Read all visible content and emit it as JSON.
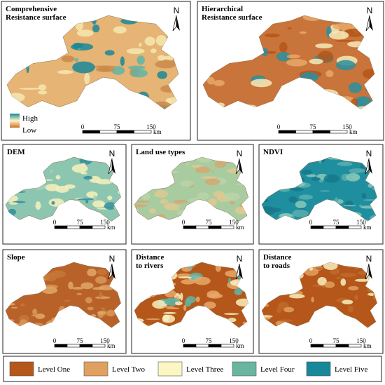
{
  "panels": [
    {
      "title": [
        "Comprehensive",
        "Resistance surface"
      ],
      "north": "N",
      "scale_labels": [
        "0",
        "75",
        "150"
      ],
      "unit": "km",
      "gradient_legend": [
        "High",
        "Low"
      ]
    },
    {
      "title": [
        "Hierarchical",
        "Resistance surface"
      ],
      "north": "N",
      "scale_labels": [
        "0",
        "75",
        "150"
      ],
      "unit": "km"
    },
    {
      "title": [
        "DEM"
      ],
      "north": "N",
      "scale_labels": [
        "0",
        "75",
        "150"
      ],
      "unit": "km"
    },
    {
      "title": [
        "Land use types"
      ],
      "north": "N",
      "scale_labels": [
        "0",
        "75",
        "150"
      ],
      "unit": "km"
    },
    {
      "title": [
        "NDVI"
      ],
      "north": "N",
      "scale_labels": [
        "0",
        "75",
        "150"
      ],
      "unit": "km"
    },
    {
      "title": [
        "Slope"
      ],
      "north": "N",
      "scale_labels": [
        "0",
        "75",
        "150"
      ],
      "unit": "km"
    },
    {
      "title": [
        "Distance",
        "to rivers"
      ],
      "north": "N",
      "scale_labels": [
        "0",
        "75",
        "150"
      ],
      "unit": "km"
    },
    {
      "title": [
        "Distance",
        "to roads"
      ],
      "north": "N",
      "scale_labels": [
        "0",
        "75",
        "150"
      ],
      "unit": "km"
    }
  ],
  "legend": [
    {
      "label": "Level One",
      "color": "#b5561a"
    },
    {
      "label": "Level Two",
      "color": "#e0a060"
    },
    {
      "label": "Level Three",
      "color": "#fcf6c2"
    },
    {
      "label": "Level Four",
      "color": "#6ab5a0"
    },
    {
      "label": "Level Five",
      "color": "#17889a"
    }
  ]
}
